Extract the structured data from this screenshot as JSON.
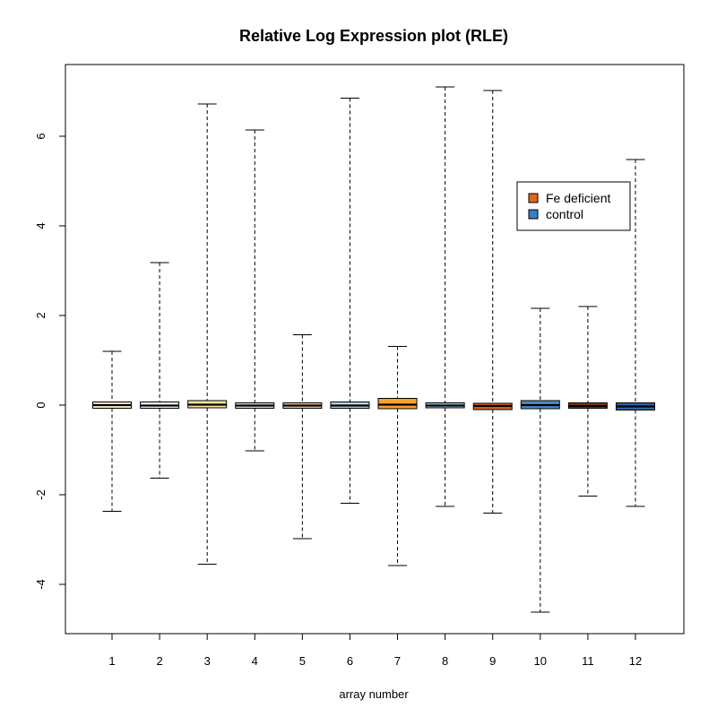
{
  "chart_data": {
    "type": "boxplot",
    "title": "Relative Log Expression plot (RLE)",
    "xlabel": "array number",
    "ylabel": "",
    "ylim": [
      -5.1,
      7.6
    ],
    "yticks": [
      -4,
      -2,
      0,
      2,
      4,
      6
    ],
    "ytick_labels": [
      "-4",
      "-2",
      "0",
      "2",
      "4",
      "6"
    ],
    "categories": [
      "1",
      "2",
      "3",
      "4",
      "5",
      "6",
      "7",
      "8",
      "9",
      "10",
      "11",
      "12"
    ],
    "boxes": [
      {
        "min": -2.37,
        "q1": -0.07,
        "median": 0.0,
        "q3": 0.07,
        "max": 1.2,
        "fill": "#fdf0d0"
      },
      {
        "min": -1.63,
        "q1": -0.07,
        "median": -0.01,
        "q3": 0.07,
        "max": 3.18,
        "fill": "#f4f4f4"
      },
      {
        "min": -3.55,
        "q1": -0.06,
        "median": 0.01,
        "q3": 0.1,
        "max": 6.72,
        "fill": "#fde3a0"
      },
      {
        "min": -1.02,
        "q1": -0.07,
        "median": -0.01,
        "q3": 0.05,
        "max": 6.14,
        "fill": "#dddddd"
      },
      {
        "min": -2.98,
        "q1": -0.07,
        "median": -0.01,
        "q3": 0.05,
        "max": 1.57,
        "fill": "#f4c8a0"
      },
      {
        "min": -2.19,
        "q1": -0.07,
        "median": -0.01,
        "q3": 0.07,
        "max": 6.85,
        "fill": "#b8d4ea"
      },
      {
        "min": -3.58,
        "q1": -0.08,
        "median": 0.01,
        "q3": 0.15,
        "max": 1.31,
        "fill": "#f7a233"
      },
      {
        "min": -2.26,
        "q1": -0.06,
        "median": -0.01,
        "q3": 0.05,
        "max": 7.1,
        "fill": "#9ec4e0"
      },
      {
        "min": -2.41,
        "q1": -0.1,
        "median": -0.02,
        "q3": 0.04,
        "max": 7.02,
        "fill": "#e0661a"
      },
      {
        "min": -4.62,
        "q1": -0.08,
        "median": 0.0,
        "q3": 0.1,
        "max": 2.16,
        "fill": "#4f8bc4"
      },
      {
        "min": -2.03,
        "q1": -0.07,
        "median": -0.02,
        "q3": 0.05,
        "max": 2.2,
        "fill": "#8c3a0c"
      },
      {
        "min": -2.26,
        "q1": -0.11,
        "median": -0.03,
        "q3": 0.05,
        "max": 5.48,
        "fill": "#2a64a8"
      }
    ],
    "legend": {
      "position": "right",
      "entries": [
        {
          "label": "Fe deficient",
          "color": "#e0661a"
        },
        {
          "label": "control",
          "color": "#3a7cc0"
        }
      ]
    },
    "grid": false
  }
}
